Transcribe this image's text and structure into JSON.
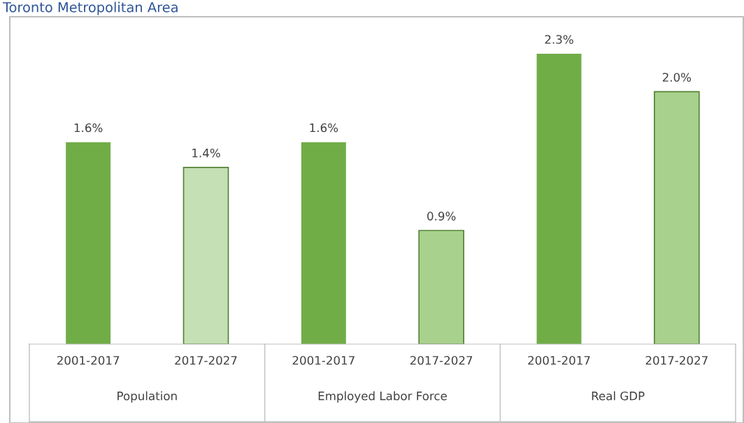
{
  "chart_data": {
    "type": "bar",
    "title": "Toronto Metropolitan Area",
    "categories": [
      "2001-2017",
      "2017-2027",
      "2001-2017",
      "2017-2027",
      "2001-2017",
      "2017-2027"
    ],
    "values": [
      1.6,
      1.4,
      1.6,
      0.9,
      2.3,
      2.0
    ],
    "colors": [
      "#70ad47",
      "#c5e0b4",
      "#70ad47",
      "#a9d18e",
      "#70ad47",
      "#a9d18e"
    ],
    "value_labels": [
      "1.6%",
      "1.4%",
      "1.6%",
      "0.9%",
      "2.3%",
      "2.0%"
    ],
    "annotations": [
      "Population",
      "Employed Labor Force",
      "Real GDP"
    ],
    "grid": false,
    "legend": false
  }
}
